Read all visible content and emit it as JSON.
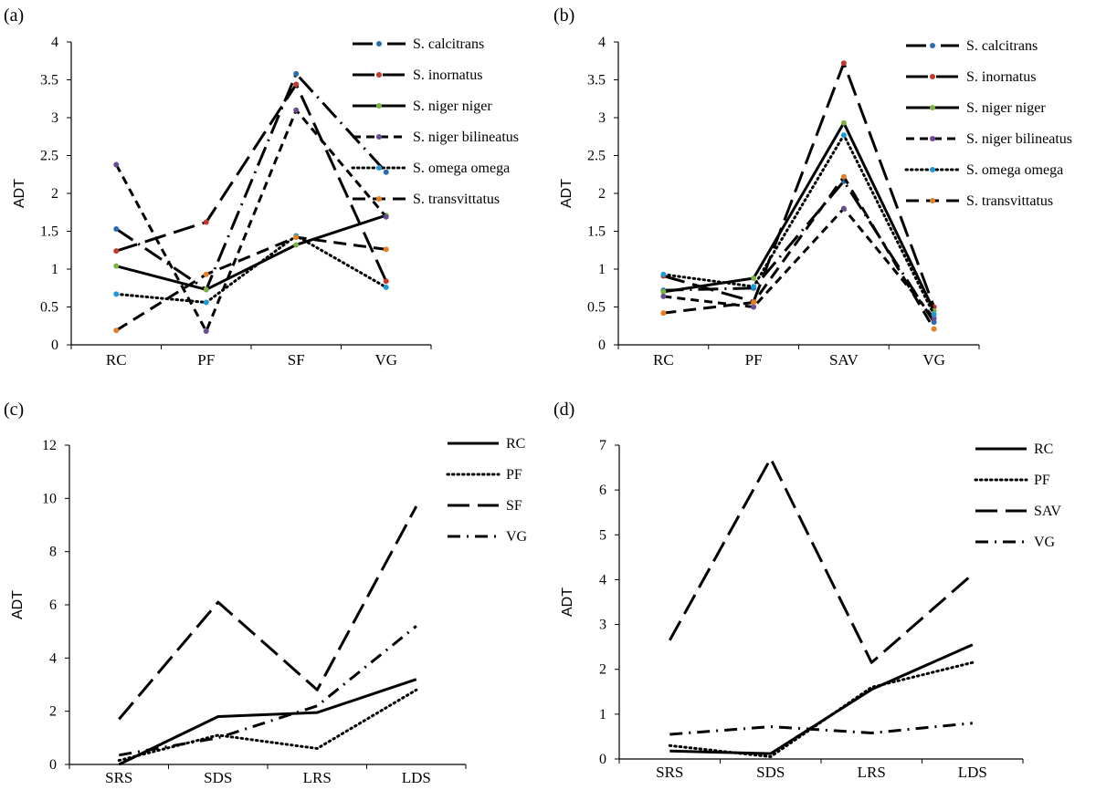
{
  "chart_data": [
    {
      "panel": "(a)",
      "type": "line",
      "ylabel": "ADT",
      "ylim": [
        0,
        4
      ],
      "yticks": [
        "0",
        "0.5",
        "1",
        "1.5",
        "2",
        "2.5",
        "3",
        "3.5",
        "4"
      ],
      "categories": [
        "RC",
        "PF",
        "SF",
        "VG"
      ],
      "legend_position": "top-right",
      "series": [
        {
          "name": "S. calcitrans",
          "values": [
            1.53,
            0.73,
            3.58,
            2.28
          ],
          "dash": "longdot",
          "marker_color": "#2b6cb0"
        },
        {
          "name": "S. inornatus",
          "values": [
            1.24,
            1.62,
            3.44,
            0.84
          ],
          "dash": "longdash",
          "marker_color": "#c0392b"
        },
        {
          "name": "S. niger niger",
          "values": [
            1.04,
            0.73,
            1.32,
            1.71
          ],
          "dash": "solid",
          "marker_color": "#7cb342"
        },
        {
          "name": "S. niger bilineatus",
          "values": [
            2.38,
            0.18,
            3.1,
            1.69
          ],
          "dash": "dash",
          "marker_color": "#6a4c93"
        },
        {
          "name": "S. omega omega",
          "values": [
            0.67,
            0.56,
            1.44,
            0.76
          ],
          "dash": "dot",
          "marker_color": "#1e9bd7"
        },
        {
          "name": "S. transvittatus",
          "values": [
            0.19,
            0.93,
            1.42,
            1.26
          ],
          "dash": "dash2",
          "marker_color": "#e67e22"
        }
      ]
    },
    {
      "panel": "(b)",
      "type": "line",
      "ylabel": "ADT",
      "ylim": [
        0,
        4
      ],
      "yticks": [
        "0",
        "0.5",
        "1",
        "1.5",
        "2",
        "2.5",
        "3",
        "3.5",
        "4"
      ],
      "categories": [
        "RC",
        "PF",
        "SAV",
        "VG"
      ],
      "legend_position": "top-right",
      "series": [
        {
          "name": "S. calcitrans",
          "values": [
            0.72,
            0.75,
            2.16,
            0.3
          ],
          "dash": "longdot",
          "marker_color": "#2b6cb0"
        },
        {
          "name": "S. inornatus",
          "values": [
            0.91,
            0.57,
            3.72,
            0.5
          ],
          "dash": "longdash",
          "marker_color": "#c0392b"
        },
        {
          "name": "S. niger niger",
          "values": [
            0.7,
            0.88,
            2.93,
            0.45
          ],
          "dash": "solid",
          "marker_color": "#7cb342"
        },
        {
          "name": "S. niger bilineatus",
          "values": [
            0.64,
            0.5,
            1.8,
            0.35
          ],
          "dash": "dash",
          "marker_color": "#6a4c93"
        },
        {
          "name": "S. omega omega",
          "values": [
            0.93,
            0.77,
            2.77,
            0.4
          ],
          "dash": "dot",
          "marker_color": "#1e9bd7"
        },
        {
          "name": "S. transvittatus",
          "values": [
            0.42,
            0.56,
            2.22,
            0.21
          ],
          "dash": "dash2",
          "marker_color": "#e67e22"
        }
      ]
    },
    {
      "panel": "(c)",
      "type": "line",
      "ylabel": "ADT",
      "ylim": [
        0,
        12
      ],
      "yticks": [
        "0",
        "2",
        "4",
        "6",
        "8",
        "10",
        "12"
      ],
      "categories": [
        "SRS",
        "SDS",
        "LRS",
        "LDS"
      ],
      "legend_position": "top-right",
      "series": [
        {
          "name": "RC",
          "values": [
            0,
            1.8,
            1.95,
            3.2
          ],
          "dash": "solid"
        },
        {
          "name": "PF",
          "values": [
            0.15,
            1.1,
            0.6,
            2.8
          ],
          "dash": "dot"
        },
        {
          "name": "SF",
          "values": [
            1.7,
            6.1,
            2.8,
            9.7
          ],
          "dash": "longdash"
        },
        {
          "name": "VG",
          "values": [
            0.35,
            1.0,
            2.2,
            5.2
          ],
          "dash": "dashdot"
        }
      ]
    },
    {
      "panel": "(d)",
      "type": "line",
      "ylabel": "ADT",
      "ylim": [
        0,
        7
      ],
      "yticks": [
        "0",
        "1",
        "2",
        "3",
        "4",
        "5",
        "6",
        "7"
      ],
      "categories": [
        "SRS",
        "SDS",
        "LRS",
        "LDS"
      ],
      "legend_position": "top-right",
      "series": [
        {
          "name": "RC",
          "values": [
            0.18,
            0.12,
            1.55,
            2.55
          ],
          "dash": "solid"
        },
        {
          "name": "PF",
          "values": [
            0.3,
            0.05,
            1.6,
            2.15
          ],
          "dash": "dot"
        },
        {
          "name": "SAV",
          "values": [
            2.65,
            6.7,
            2.15,
            4.12
          ],
          "dash": "longdash"
        },
        {
          "name": "VG",
          "values": [
            0.55,
            0.72,
            0.58,
            0.8
          ],
          "dash": "dashdot"
        }
      ]
    }
  ]
}
